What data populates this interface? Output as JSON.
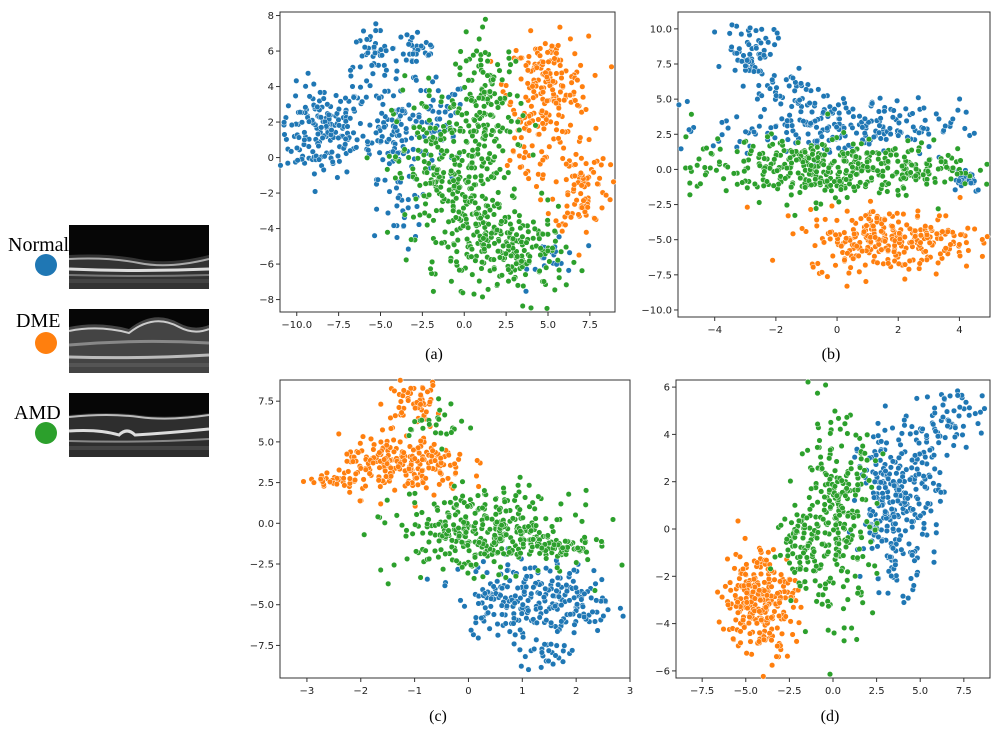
{
  "legend": {
    "items": [
      {
        "label": "Normal",
        "color": "#1f77b4",
        "icon": "oct-normal-scan"
      },
      {
        "label": "DME",
        "color": "#ff7f0e",
        "icon": "oct-dme-scan"
      },
      {
        "label": "AMD",
        "color": "#2ca02c",
        "icon": "oct-amd-scan"
      }
    ]
  },
  "chart_data": [
    {
      "type": "scatter",
      "caption": "(a)",
      "xlim": [
        -11,
        9
      ],
      "ylim": [
        -8.7,
        8.2
      ],
      "xticks": [
        -10.0,
        -7.5,
        -5.0,
        -2.5,
        0.0,
        2.5,
        5.0,
        7.5
      ],
      "xtick_labels": [
        "−10.0",
        "−7.5",
        "−5.0",
        "−2.5",
        "0.0",
        "2.5",
        "5.0",
        "7.5"
      ],
      "yticks": [
        -8,
        -6,
        -4,
        -2,
        0,
        2,
        4,
        6,
        8
      ],
      "ytick_labels": [
        "−8",
        "−6",
        "−4",
        "−2",
        "0",
        "2",
        "4",
        "6",
        "8"
      ],
      "series": [
        {
          "name": "Normal",
          "color": "#1f77b4",
          "clusters": [
            {
              "cx": -8.5,
              "cy": 1.5,
              "sx": 1.3,
              "sy": 1.3,
              "n": 170
            },
            {
              "cx": -4.0,
              "cy": 1.5,
              "sx": 1.2,
              "sy": 1.3,
              "n": 120
            },
            {
              "cx": -5.5,
              "cy": 5.2,
              "sx": 0.8,
              "sy": 1.0,
              "n": 50
            },
            {
              "cx": -2.8,
              "cy": 6.2,
              "sx": 0.7,
              "sy": 0.7,
              "n": 35
            },
            {
              "cx": -1.5,
              "cy": 2.0,
              "sx": 0.8,
              "sy": 1.2,
              "n": 40
            },
            {
              "cx": -3.5,
              "cy": -3.5,
              "sx": 0.7,
              "sy": 1.0,
              "n": 25
            },
            {
              "cx": 5.5,
              "cy": -5.5,
              "sx": 0.8,
              "sy": 0.8,
              "n": 20
            }
          ]
        },
        {
          "name": "DME",
          "color": "#ff7f0e",
          "clusters": [
            {
              "cx": 5.0,
              "cy": 4.0,
              "sx": 1.2,
              "sy": 1.4,
              "n": 180
            },
            {
              "cx": 7.0,
              "cy": -1.5,
              "sx": 0.8,
              "sy": 1.4,
              "n": 90
            },
            {
              "cx": 3.5,
              "cy": 0.5,
              "sx": 0.9,
              "sy": 1.5,
              "n": 40
            }
          ]
        },
        {
          "name": "AMD",
          "color": "#2ca02c",
          "clusters": [
            {
              "cx": -1.0,
              "cy": -1.0,
              "sx": 1.6,
              "sy": 2.5,
              "n": 260
            },
            {
              "cx": 1.5,
              "cy": 2.5,
              "sx": 1.0,
              "sy": 2.2,
              "n": 140
            },
            {
              "cx": 3.5,
              "cy": -5.5,
              "sx": 1.3,
              "sy": 1.2,
              "n": 130
            },
            {
              "cx": 1.0,
              "cy": -4.5,
              "sx": 1.2,
              "sy": 1.5,
              "n": 90
            }
          ]
        }
      ]
    },
    {
      "type": "scatter",
      "caption": "(b)",
      "xlim": [
        -5.2,
        5.0
      ],
      "ylim": [
        -10.5,
        11.2
      ],
      "xticks": [
        -4,
        -2,
        0,
        2,
        4
      ],
      "xtick_labels": [
        "−4",
        "−2",
        "0",
        "2",
        "4"
      ],
      "yticks": [
        -10.0,
        -7.5,
        -5.0,
        -2.5,
        0.0,
        2.5,
        5.0,
        7.5,
        10.0
      ],
      "ytick_labels": [
        "−10.0",
        "−7.5",
        "−5.0",
        "−2.5",
        "0.0",
        "2.5",
        "5.0",
        "7.5",
        "10.0"
      ],
      "series": [
        {
          "name": "Normal",
          "color": "#1f77b4",
          "clusters": [
            {
              "cx": -2.8,
              "cy": 8.5,
              "sx": 0.4,
              "sy": 1.0,
              "n": 60
            },
            {
              "cx": 0.0,
              "cy": 3.0,
              "sx": 2.0,
              "sy": 1.0,
              "n": 220
            },
            {
              "cx": -1.5,
              "cy": 5.5,
              "sx": 0.6,
              "sy": 0.8,
              "n": 40
            },
            {
              "cx": 4.2,
              "cy": -0.6,
              "sx": 0.3,
              "sy": 0.5,
              "n": 25
            }
          ]
        },
        {
          "name": "DME",
          "color": "#ff7f0e",
          "clusters": [
            {
              "cx": 1.8,
              "cy": -5.0,
              "sx": 1.4,
              "sy": 1.1,
              "n": 280
            }
          ]
        },
        {
          "name": "AMD",
          "color": "#2ca02c",
          "clusters": [
            {
              "cx": -1.0,
              "cy": 0.0,
              "sx": 1.9,
              "sy": 1.1,
              "n": 320
            },
            {
              "cx": 2.5,
              "cy": 0.3,
              "sx": 1.0,
              "sy": 0.8,
              "n": 90
            }
          ]
        }
      ]
    },
    {
      "type": "scatter",
      "caption": "(c)",
      "xlim": [
        -3.5,
        3.0
      ],
      "ylim": [
        -9.5,
        8.8
      ],
      "xticks": [
        -3,
        -2,
        -1,
        0,
        1,
        2,
        3
      ],
      "xtick_labels": [
        "−3",
        "−2",
        "−1",
        "0",
        "1",
        "2",
        "3"
      ],
      "yticks": [
        -7.5,
        -5.0,
        -2.5,
        0.0,
        2.5,
        5.0,
        7.5
      ],
      "ytick_labels": [
        "−7.5",
        "−5.0",
        "−2.5",
        "0.0",
        "2.5",
        "5.0",
        "7.5"
      ],
      "series": [
        {
          "name": "Normal",
          "color": "#1f77b4",
          "clusters": [
            {
              "cx": 1.0,
              "cy": -4.5,
              "sx": 0.6,
              "sy": 1.2,
              "n": 200
            },
            {
              "cx": 2.1,
              "cy": -5.0,
              "sx": 0.3,
              "sy": 1.2,
              "n": 50
            },
            {
              "cx": 1.4,
              "cy": -7.8,
              "sx": 0.3,
              "sy": 0.6,
              "n": 30
            }
          ]
        },
        {
          "name": "DME",
          "color": "#ff7f0e",
          "clusters": [
            {
              "cx": -1.2,
              "cy": 3.5,
              "sx": 0.6,
              "sy": 0.9,
              "n": 230
            },
            {
              "cx": -1.0,
              "cy": 7.5,
              "sx": 0.25,
              "sy": 0.6,
              "n": 50
            },
            {
              "cx": -2.6,
              "cy": 2.8,
              "sx": 0.35,
              "sy": 0.3,
              "n": 25
            }
          ]
        },
        {
          "name": "AMD",
          "color": "#2ca02c",
          "clusters": [
            {
              "cx": 0.3,
              "cy": -0.5,
              "sx": 0.8,
              "sy": 1.2,
              "n": 330
            },
            {
              "cx": 1.5,
              "cy": -1.5,
              "sx": 0.5,
              "sy": 0.5,
              "n": 70
            },
            {
              "cx": -0.6,
              "cy": 6.0,
              "sx": 0.25,
              "sy": 0.6,
              "n": 25
            }
          ]
        }
      ]
    },
    {
      "type": "scatter",
      "caption": "(d)",
      "xlim": [
        -9.0,
        9.0
      ],
      "ylim": [
        -6.3,
        6.3
      ],
      "xticks": [
        -7.5,
        -5.0,
        -2.5,
        0.0,
        2.5,
        5.0,
        7.5
      ],
      "xtick_labels": [
        "−7.5",
        "−5.0",
        "−2.5",
        "0.0",
        "2.5",
        "5.0",
        "7.5"
      ],
      "yticks": [
        -6,
        -4,
        -2,
        0,
        2,
        4,
        6
      ],
      "ytick_labels": [
        "−6",
        "−4",
        "−2",
        "0",
        "2",
        "4",
        "6"
      ],
      "series": [
        {
          "name": "Normal",
          "color": "#1f77b4",
          "clusters": [
            {
              "cx": 3.5,
              "cy": 1.0,
              "sx": 1.0,
              "sy": 1.7,
              "n": 260
            },
            {
              "cx": 7.0,
              "cy": 4.8,
              "sx": 1.0,
              "sy": 0.6,
              "n": 50
            },
            {
              "cx": 5.5,
              "cy": 2.5,
              "sx": 0.6,
              "sy": 1.0,
              "n": 40
            }
          ]
        },
        {
          "name": "DME",
          "color": "#ff7f0e",
          "clusters": [
            {
              "cx": -4.2,
              "cy": -3.0,
              "sx": 1.0,
              "sy": 1.1,
              "n": 270
            }
          ]
        },
        {
          "name": "AMD",
          "color": "#2ca02c",
          "clusters": [
            {
              "cx": 0.2,
              "cy": 0.5,
              "sx": 1.1,
              "sy": 2.0,
              "n": 260
            },
            {
              "cx": -1.8,
              "cy": -0.7,
              "sx": 0.7,
              "sy": 0.9,
              "n": 70
            }
          ]
        }
      ]
    }
  ]
}
